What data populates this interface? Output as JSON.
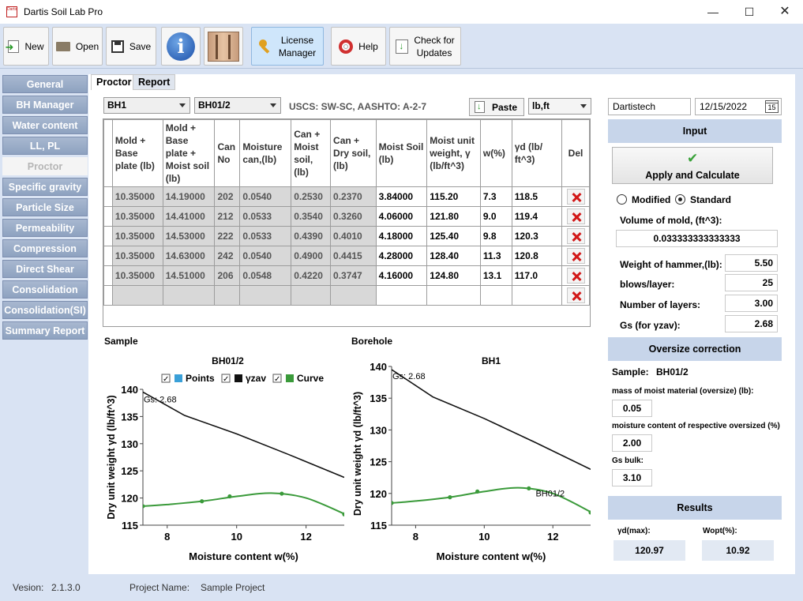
{
  "window": {
    "title": "Dartis Soil Lab Pro",
    "logo_text": "Dartis"
  },
  "toolbar": {
    "new_label": "New",
    "open_label": "Open",
    "save_label": "Save",
    "license_label_1": "License",
    "license_label_2": "Manager",
    "help_label": "Help",
    "updates_label_1": "Check for",
    "updates_label_2": "Updates"
  },
  "nav": {
    "items": [
      "General",
      "BH Manager",
      "Water content",
      "LL, PL",
      "Proctor",
      "Specific gravity",
      "Particle Size",
      "Permeability",
      "Compression",
      "Direct Shear",
      "Consolidation",
      "Consolidation(SI)",
      "Summary Report"
    ],
    "active": "Proctor"
  },
  "tabs": {
    "proctor": "Proctor",
    "report": "Report"
  },
  "selectors": {
    "borehole": "BH1",
    "sample": "BH01/2",
    "units": "lb,ft"
  },
  "classification": "USCS: SW-SC, AASHTO: A-2-7",
  "paste_label": "Paste",
  "table": {
    "headers": [
      "Mold + Base plate (lb)",
      "Mold + Base plate + Moist soil (lb)",
      "Can No",
      "Moisture can,(lb)",
      "Can + Moist soil, (lb)",
      "Can + Dry soil, (lb)",
      "Moist Soil (lb)",
      "Moist unit weight, γ (lb/ft^3)",
      "w(%)",
      "γd (lb/ ft^3)",
      "Del"
    ],
    "rows": [
      [
        "10.35000",
        "14.19000",
        "202",
        "0.0540",
        "0.2530",
        "0.2370",
        "3.84000",
        "115.20",
        "7.3",
        "118.5"
      ],
      [
        "10.35000",
        "14.41000",
        "212",
        "0.0533",
        "0.3540",
        "0.3260",
        "4.06000",
        "121.80",
        "9.0",
        "119.4"
      ],
      [
        "10.35000",
        "14.53000",
        "222",
        "0.0533",
        "0.4390",
        "0.4010",
        "4.18000",
        "125.40",
        "9.8",
        "120.3"
      ],
      [
        "10.35000",
        "14.63000",
        "242",
        "0.0540",
        "0.4900",
        "0.4415",
        "4.28000",
        "128.40",
        "11.3",
        "120.8"
      ],
      [
        "10.35000",
        "14.51000",
        "206",
        "0.0548",
        "0.4220",
        "0.3747",
        "4.16000",
        "124.80",
        "13.1",
        "117.0"
      ]
    ]
  },
  "charts_labels": {
    "sample_section": "Sample",
    "borehole_section": "Borehole"
  },
  "chart_data": [
    {
      "type": "line",
      "title": "BH01/2",
      "xlabel": "Moisture content w(%)",
      "ylabel": "Dry unit weight γd (lb/ft^3)",
      "xlim": [
        7.3,
        13.1
      ],
      "ylim": [
        115,
        140
      ],
      "x_ticks": [
        8,
        10,
        12
      ],
      "y_ticks": [
        115,
        120,
        125,
        130,
        135,
        140
      ],
      "legend": [
        "Points",
        "γzav",
        "Curve"
      ],
      "legend_position": "top",
      "annotations": [
        "Gs: 2.68"
      ],
      "series": [
        {
          "name": "Points",
          "color": "#3aa0d8",
          "x": [
            7.3,
            9.0,
            9.8,
            11.3,
            13.1
          ],
          "y": [
            118.5,
            119.4,
            120.3,
            120.8,
            117.0
          ]
        },
        {
          "name": "γzav",
          "color": "#111111",
          "x": [
            7.3,
            8.5,
            10.0,
            11.5,
            13.1
          ],
          "y": [
            139.5,
            135.2,
            131.8,
            128.0,
            123.8
          ]
        },
        {
          "name": "Curve",
          "color": "#3a9a3a",
          "x": [
            7.3,
            8.0,
            9.0,
            10.0,
            11.0,
            12.0,
            13.1
          ],
          "y": [
            118.5,
            118.8,
            119.4,
            120.3,
            120.9,
            120.0,
            117.1
          ]
        }
      ]
    },
    {
      "type": "line",
      "title": "BH1",
      "xlabel": "Moisture content w(%)",
      "ylabel": "Dry unit weight γd (lb/ft^3)",
      "xlim": [
        7.3,
        13.1
      ],
      "ylim": [
        115,
        140
      ],
      "x_ticks": [
        8,
        10,
        12
      ],
      "y_ticks": [
        115,
        120,
        125,
        130,
        135,
        140
      ],
      "annotations": [
        "Gs: 2.68",
        "BH01/2"
      ],
      "series": [
        {
          "name": "Points",
          "color": "#3aa0d8",
          "x": [
            7.3,
            9.0,
            9.8,
            11.3,
            13.1
          ],
          "y": [
            118.5,
            119.4,
            120.3,
            120.8,
            117.0
          ]
        },
        {
          "name": "γzav",
          "color": "#111111",
          "x": [
            7.3,
            8.5,
            10.0,
            11.5,
            13.1
          ],
          "y": [
            139.5,
            135.2,
            131.8,
            128.0,
            123.8
          ]
        },
        {
          "name": "Curve",
          "color": "#3a9a3a",
          "x": [
            7.3,
            8.0,
            9.0,
            10.0,
            11.0,
            12.0,
            13.1
          ],
          "y": [
            118.5,
            118.8,
            119.4,
            120.3,
            120.9,
            120.0,
            117.1
          ]
        }
      ]
    }
  ],
  "right": {
    "company": "Dartistech",
    "date": "12/15/2022",
    "calendar_day": "15",
    "input_header": "Input",
    "apply_label": "Apply and Calculate",
    "modified_label": "Modified",
    "standard_label": "Standard",
    "volume_label": "Volume of mold, (ft^3):",
    "volume_value": "0.033333333333333",
    "hammer_label": "Weight of hammer,(lb):",
    "hammer_value": "5.50",
    "blows_label": "blows/layer:",
    "blows_value": "25",
    "layers_label": "Number of layers:",
    "layers_value": "3.00",
    "gs_label": "Gs (for γzav):",
    "gs_value": "2.68",
    "oversize_header": "Oversize correction",
    "sample_label": "Sample:",
    "sample_value": "BH01/2",
    "mass_label": "mass of moist material (oversize) (lb):",
    "mass_value": "0.05",
    "moist_label": "moisture content of respective oversized (%)",
    "moist_value": "2.00",
    "gsbulk_label": "Gs bulk:",
    "gsbulk_value": "3.10",
    "results_header": "Results",
    "ydmax_label": "γd(max):",
    "ydmax_value": "120.97",
    "wopt_label": "Wopt(%):",
    "wopt_value": "10.92"
  },
  "status": {
    "version_label": "Vesion:",
    "version_value": "2.1.3.0",
    "project_label": "Project Name:",
    "project_value": "Sample Project"
  },
  "colors": {
    "accent": "#c7d5ea",
    "nav": "#9aaecb",
    "curve": "#3a9a3a",
    "points": "#3aa0d8"
  }
}
